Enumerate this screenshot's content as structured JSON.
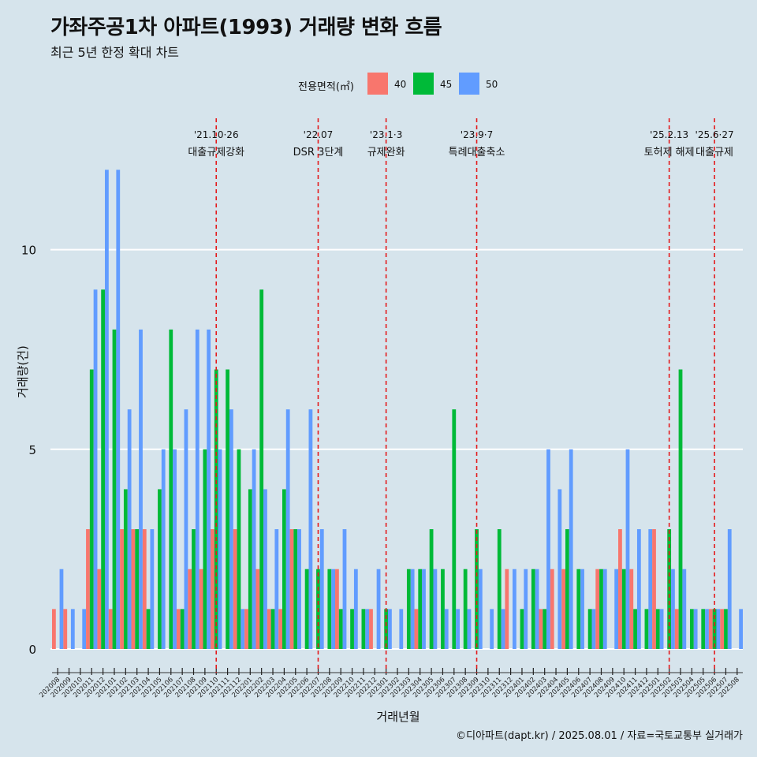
{
  "header": {
    "title": "가좌주공1차 아파트(1993) 거래량 변화 흐름",
    "subtitle": "최근 5년 한정 확대 차트"
  },
  "legend": {
    "title": "전용면적(㎡)",
    "items": [
      {
        "label": "40",
        "color": "#f8766d"
      },
      {
        "label": "45",
        "color": "#00ba38"
      },
      {
        "label": "50",
        "color": "#619cff"
      }
    ]
  },
  "caption": "©디아파트(dapt.kr) / 2025.08.01 / 자료=국토교통부 실거래가",
  "chart_data": {
    "type": "bar",
    "title": "가좌주공1차 아파트(1993) 거래량 변화 흐름",
    "subtitle": "최근 5년 한정 확대 차트",
    "xlabel": "거래년월",
    "ylabel": "거래량(건)",
    "ylim": [
      0,
      12.5
    ],
    "yticks": [
      0,
      5,
      10
    ],
    "grid": "horizontal",
    "legend_position": "top",
    "bar_mode": "dodge",
    "categories": [
      "202008",
      "202009",
      "202010",
      "202011",
      "202012",
      "202101",
      "202102",
      "202103",
      "202104",
      "202105",
      "202106",
      "202107",
      "202108",
      "202109",
      "202110",
      "202111",
      "202112",
      "202201",
      "202202",
      "202203",
      "202204",
      "202205",
      "202206",
      "202207",
      "202208",
      "202209",
      "202210",
      "202211",
      "202212",
      "202301",
      "202302",
      "202303",
      "202304",
      "202305",
      "202306",
      "202307",
      "202308",
      "202309",
      "202310",
      "202311",
      "202312",
      "202401",
      "202402",
      "202403",
      "202404",
      "202405",
      "202406",
      "202407",
      "202408",
      "202409",
      "202410",
      "202411",
      "202412",
      "202501",
      "202502",
      "202503",
      "202504",
      "202505",
      "202506",
      "202507",
      "202508"
    ],
    "series": [
      {
        "name": "40",
        "color": "#f8766d",
        "values": [
          1,
          1,
          0,
          3,
          2,
          1,
          3,
          3,
          3,
          0,
          0,
          1,
          2,
          2,
          3,
          0,
          3,
          1,
          2,
          1,
          1,
          3,
          0,
          0,
          0,
          2,
          0,
          0,
          1,
          0,
          0,
          0,
          1,
          0,
          0,
          0,
          0,
          0,
          0,
          0,
          2,
          0,
          0,
          1,
          2,
          2,
          0,
          0,
          2,
          0,
          3,
          2,
          0,
          3,
          0,
          1,
          0,
          0,
          1,
          1,
          0
        ]
      },
      {
        "name": "45",
        "color": "#00ba38",
        "values": [
          0,
          0,
          0,
          7,
          9,
          8,
          4,
          3,
          1,
          4,
          8,
          1,
          3,
          5,
          7,
          7,
          5,
          4,
          9,
          1,
          4,
          3,
          2,
          2,
          2,
          1,
          1,
          1,
          0,
          1,
          0,
          2,
          2,
          3,
          2,
          6,
          2,
          3,
          0,
          3,
          0,
          1,
          2,
          1,
          0,
          3,
          2,
          1,
          2,
          0,
          2,
          1,
          1,
          1,
          3,
          7,
          1,
          1,
          1,
          1,
          0
        ]
      },
      {
        "name": "50",
        "color": "#619cff",
        "values": [
          2,
          1,
          1,
          9,
          12,
          12,
          6,
          8,
          3,
          5,
          5,
          6,
          8,
          8,
          5,
          6,
          1,
          5,
          4,
          3,
          6,
          3,
          6,
          3,
          2,
          3,
          2,
          1,
          2,
          1,
          1,
          2,
          2,
          2,
          1,
          1,
          1,
          2,
          1,
          1,
          2,
          2,
          2,
          5,
          4,
          5,
          2,
          1,
          2,
          2,
          5,
          3,
          3,
          1,
          2,
          2,
          1,
          1,
          1,
          3,
          1
        ]
      }
    ],
    "events": [
      {
        "category": "202110",
        "date_label": "'21.10·26",
        "label": "대출규제강화"
      },
      {
        "category": "202207",
        "date_label": "'22.07",
        "label": "DSR 3단계"
      },
      {
        "category": "202301",
        "date_label": "'23.1·3",
        "label": "규제완화"
      },
      {
        "category": "202309",
        "date_label": "'23.9·7",
        "label": "특례대출축소"
      },
      {
        "category": "202502",
        "date_label": "'25.2.13",
        "label": "토허제 해제"
      },
      {
        "category": "202506",
        "date_label": "'25.6·27",
        "label": "대출규제"
      }
    ]
  }
}
